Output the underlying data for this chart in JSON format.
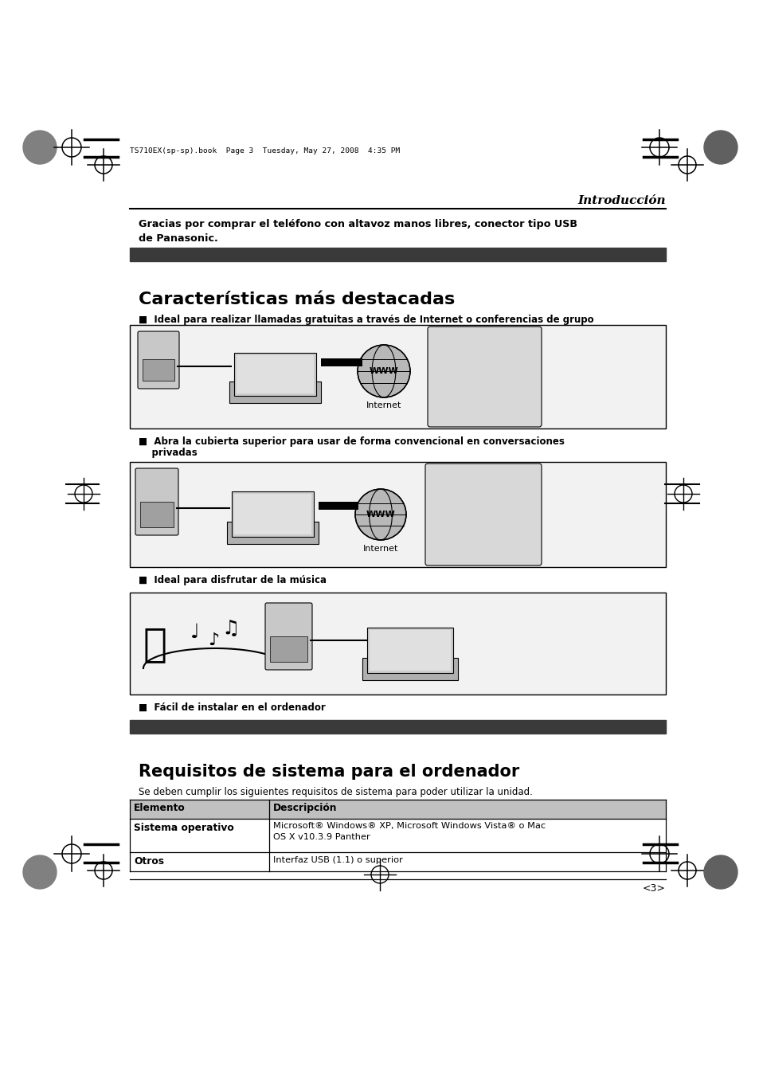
{
  "bg_color": "#ffffff",
  "page_width": 9.54,
  "page_height": 13.51,
  "dpi": 100,
  "header_text": "TS710EX(sp-sp).book  Page 3  Tuesday, May 27, 2008  4:35 PM",
  "section_italic": "Introducción",
  "intro_bold": "Gracias por comprar el teléfono con altavoz manos libres, conector tipo USB\nde Panasonic.",
  "sec1_title": "Características más destacadas",
  "bullet1": "■  Ideal para realizar llamadas gratuitas a través de Internet o conferencias de grupo",
  "bullet2a": "■  Abra la cubierta superior para usar de forma convencional en conversaciones",
  "bullet2b": "    privadas",
  "bullet3": "■  Ideal para disfrutar de la música",
  "bullet4": "■  Fácil de instalar en el ordenador",
  "sec2_title": "Requisitos de sistema para el ordenador",
  "sec2_intro": "Se deben cumplir los siguientes requisitos de sistema para poder utilizar la unidad.",
  "th1": "Elemento",
  "th2": "Descripción",
  "tr1c1": "Sistema operativo",
  "tr1c2a": "Microsoft® Windows® XP, Microsoft Windows Vista® o Mac",
  "tr1c2b": "OS X v10.3.9 Panther",
  "tr2c1": "Otros",
  "tr2c2": "Interfaz USB (1.1) o superior",
  "page_num": "<3>",
  "dark_bar": "#3a3a3a",
  "tbl_hdr_bg": "#c0c0c0",
  "box_bg": "#f2f2f2",
  "gray_mid": "#b0b0b0",
  "gray_light": "#d8d8d8",
  "gray_dark": "#888888"
}
